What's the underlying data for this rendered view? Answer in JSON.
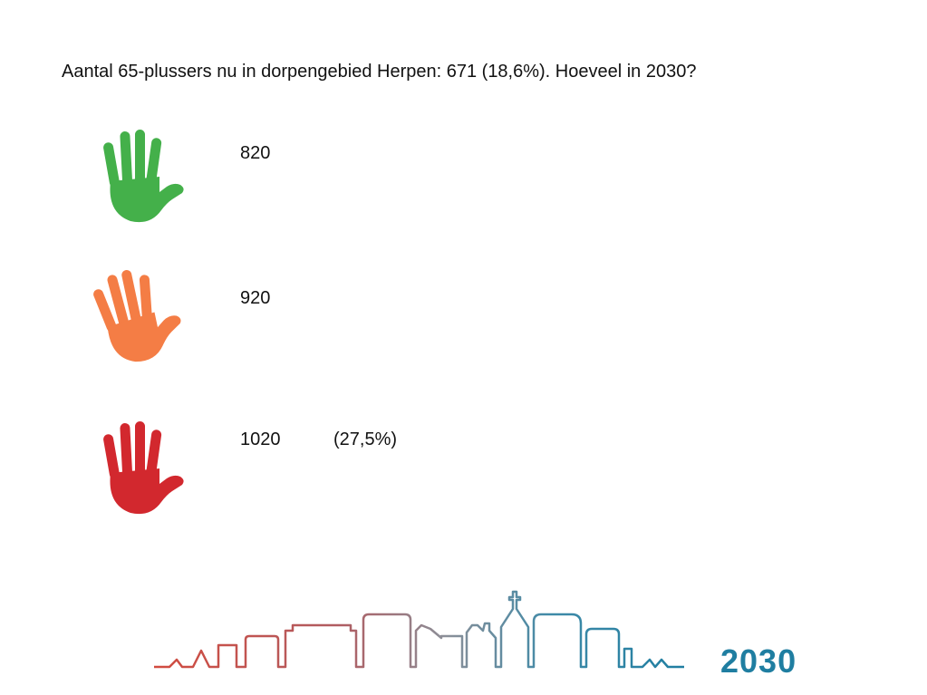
{
  "question": "Aantal 65-plussers nu in dorpengebied Herpen: 671 (18,6%). Hoeveel in 2030?",
  "options": [
    {
      "value": "820",
      "note": "",
      "hand_color": "#44b04a",
      "icon": "raised-hand-icon"
    },
    {
      "value": "920",
      "note": "",
      "hand_color": "#f47d45",
      "icon": "raised-hand-icon"
    },
    {
      "value": "1020",
      "note": "(27,5%)",
      "hand_color": "#d2282e",
      "icon": "raised-hand-icon"
    }
  ],
  "logo": {
    "year": "2030",
    "icon": "village-skyline-logo",
    "colors": [
      "#d24b3f",
      "#1f7ea1"
    ]
  }
}
